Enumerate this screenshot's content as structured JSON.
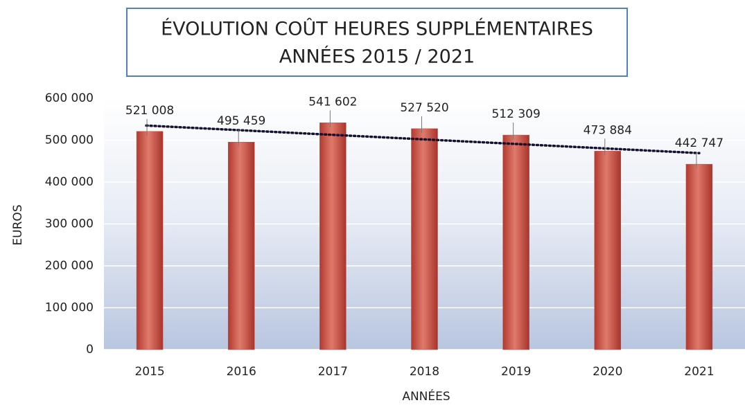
{
  "chart_data": {
    "type": "bar",
    "title": [
      "ÉVOLUTION COÛT HEURES SUPPLÉMENTAIRES",
      "ANNÉES 2015 / 2021"
    ],
    "x_label": "ANNÉES",
    "y_label": "EUROS",
    "categories": [
      "2015",
      "2016",
      "2017",
      "2018",
      "2019",
      "2020",
      "2021"
    ],
    "values": [
      521008,
      495459,
      541602,
      527520,
      512309,
      473884,
      442747
    ],
    "value_labels": [
      "521 008",
      "495 459",
      "541 602",
      "527 520",
      "512 309",
      "473 884",
      "442 747"
    ],
    "color": "#c0504d",
    "ylim": [
      0,
      600000
    ],
    "yticks": [
      0,
      {
        "value": 100000,
        "label": "100 000"
      },
      {
        "value": 200000,
        "label": "200 000"
      },
      {
        "value": 300000,
        "label": "300 000"
      },
      {
        "value": 400000,
        "label": "400 000"
      },
      {
        "value": 500000,
        "label": "500 000"
      },
      {
        "value": 600000,
        "label": "600 000"
      }
    ],
    "grid": true,
    "trendline": "linear"
  }
}
